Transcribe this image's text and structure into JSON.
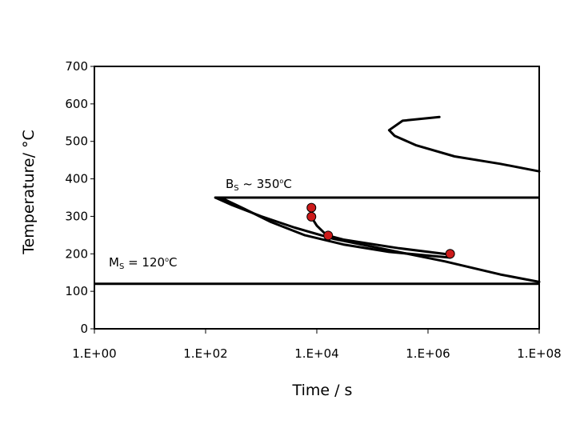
{
  "chart_data": {
    "type": "line",
    "xlabel": "Time / s",
    "ylabel": "Temperature/ °C",
    "x_scale": "log",
    "xlim": [
      1,
      100000000
    ],
    "ylim": [
      0,
      700
    ],
    "x_ticks": [
      {
        "value": 1,
        "label": "1.E+00"
      },
      {
        "value": 100,
        "label": "1.E+02"
      },
      {
        "value": 10000,
        "label": "1.E+04"
      },
      {
        "value": 1000000,
        "label": "1.E+06"
      },
      {
        "value": 100000000,
        "label": "1.E+08"
      }
    ],
    "y_ticks": [
      0,
      100,
      200,
      300,
      400,
      500,
      600,
      700
    ],
    "grid": false,
    "legend": "none",
    "series": [
      {
        "kind": "curve",
        "color": "#000000",
        "points": [
          [
            1600000,
            565
          ],
          [
            350000,
            555
          ],
          [
            200000,
            530
          ],
          [
            250000,
            515
          ],
          [
            600000,
            490
          ],
          [
            3000000,
            460
          ],
          [
            20000000,
            440
          ],
          [
            100000000,
            420
          ]
        ]
      },
      {
        "kind": "curve",
        "color": "#000000",
        "points": [
          [
            150,
            350
          ],
          [
            300,
            330
          ],
          [
            1000,
            300
          ],
          [
            4000,
            270
          ],
          [
            20000,
            240
          ],
          [
            200000,
            210
          ],
          [
            2000000,
            180
          ],
          [
            20000000,
            145
          ],
          [
            100000000,
            125
          ]
        ]
      },
      {
        "kind": "curve",
        "color": "#000000",
        "points": [
          [
            150,
            350
          ],
          [
            220,
            345
          ],
          [
            500,
            320
          ],
          [
            1500,
            285
          ],
          [
            6000,
            250
          ],
          [
            30000,
            225
          ],
          [
            200000,
            205
          ],
          [
            2500000,
            190
          ]
        ]
      },
      {
        "kind": "curve",
        "color": "#000000",
        "points": [
          [
            8000,
            325
          ],
          [
            8000,
            298
          ],
          [
            10000,
            275
          ],
          [
            15000,
            250
          ],
          [
            30000,
            238
          ],
          [
            300000,
            215
          ],
          [
            2500000,
            198
          ]
        ]
      },
      {
        "kind": "markers",
        "color": "#cc1a1a",
        "points": [
          [
            8000,
            323
          ],
          [
            8000,
            299
          ],
          [
            16000,
            249
          ],
          [
            2500000,
            200
          ]
        ]
      }
    ],
    "reference_lines": [
      {
        "y": 350,
        "label": "B_S ~ 350°C"
      },
      {
        "y": 120,
        "label": "M_S = 120°C"
      }
    ]
  },
  "annotations": {
    "bs": {
      "main": "B",
      "sub": "S",
      "rest": " ~ 350",
      "deg": "o",
      "unit": "C"
    },
    "ms": {
      "main": "M",
      "sub": "S",
      "rest": " = 120",
      "deg": "o",
      "unit": "C"
    }
  }
}
